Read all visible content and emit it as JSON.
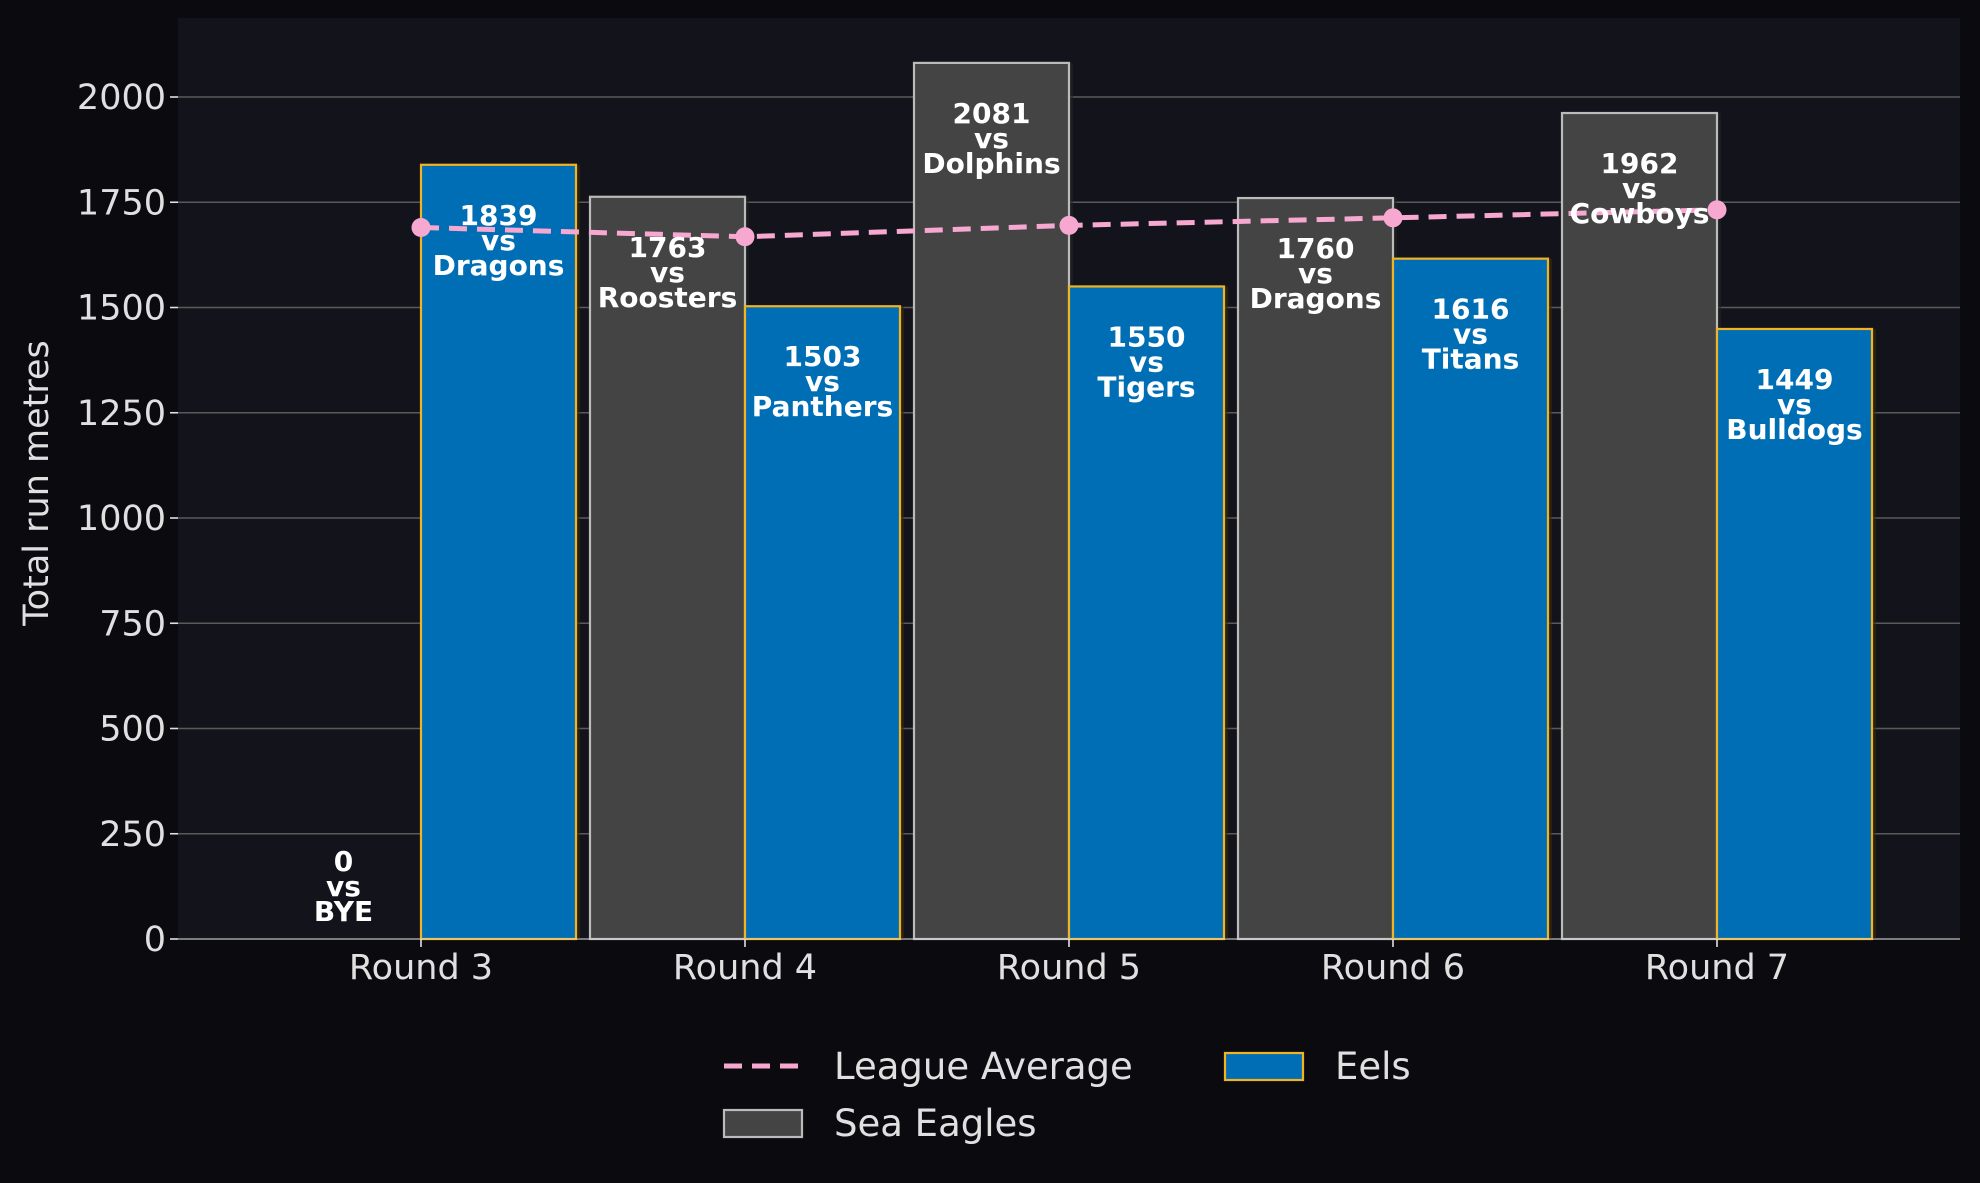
{
  "chart_data": {
    "type": "bar",
    "ylabel": "Total run metres",
    "xlabel": "",
    "ylim": [
      0,
      2150
    ],
    "yticks": [
      0,
      250,
      500,
      750,
      1000,
      1250,
      1500,
      1750,
      2000
    ],
    "grid": true,
    "legend_position": "bottom-center",
    "categories": [
      "Round 3",
      "Round 4",
      "Round 5",
      "Round 6",
      "Round 7"
    ],
    "series": [
      {
        "name": "Sea Eagles",
        "kind": "bar",
        "color": "#444444",
        "edge_color": "#bbbbbb",
        "values": [
          0,
          1763,
          2081,
          1760,
          1962
        ],
        "opponents": [
          "BYE",
          "Roosters",
          "Dolphins",
          "Dragons",
          "Cowboys"
        ]
      },
      {
        "name": "Eels",
        "kind": "bar",
        "color": "#006eb5",
        "edge_color": "#f0b323",
        "values": [
          1839,
          1503,
          1550,
          1616,
          1449
        ],
        "opponents": [
          "Dragons",
          "Panthers",
          "Tigers",
          "Titans",
          "Bulldogs"
        ]
      },
      {
        "name": "League Average",
        "kind": "line",
        "color": "#f7a8d0",
        "style": "dashed",
        "values": [
          1690,
          1668,
          1695,
          1713,
          1732
        ]
      }
    ],
    "vs_label": "vs",
    "colors": {
      "background": "#0b0b0f",
      "plot_background": "#13141b",
      "grid": "#5a5a5a",
      "text": "#e0e0e0",
      "label_text": "#ffffff"
    }
  }
}
